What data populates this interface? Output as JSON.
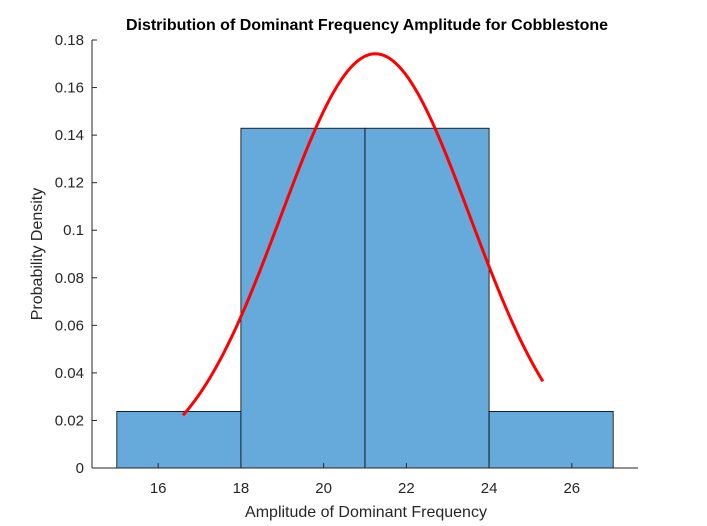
{
  "chart_data": {
    "type": "bar",
    "title": "Distribution of Dominant Frequency Amplitude for Cobblestone",
    "xlabel": "Amplitude of Dominant Frequency",
    "ylabel": "Probability Density",
    "xlim": [
      14.4,
      27.6
    ],
    "ylim": [
      0,
      0.18
    ],
    "xticks": [
      16,
      18,
      20,
      22,
      24,
      26
    ],
    "yticks": [
      0,
      0.02,
      0.04,
      0.06,
      0.08,
      0.1,
      0.12,
      0.14,
      0.16,
      0.18
    ],
    "xtick_labels": [
      "16",
      "18",
      "20",
      "22",
      "24",
      "26"
    ],
    "ytick_labels": [
      "0",
      "0.02",
      "0.04",
      "0.06",
      "0.08",
      "0.1",
      "0.12",
      "0.14",
      "0.16",
      "0.18"
    ],
    "histogram": {
      "bin_edges": [
        15,
        18,
        21,
        24,
        27
      ],
      "values": [
        0.0238,
        0.1429,
        0.1429,
        0.0238
      ],
      "color": "#66AADB",
      "edge_color": "#000000"
    },
    "fit_curve": {
      "kind": "normal-pdf",
      "mean": 21.25,
      "std": 2.29,
      "x_range": [
        16.6,
        25.3
      ],
      "color": "#FF0000"
    },
    "grid": false,
    "box": false
  }
}
